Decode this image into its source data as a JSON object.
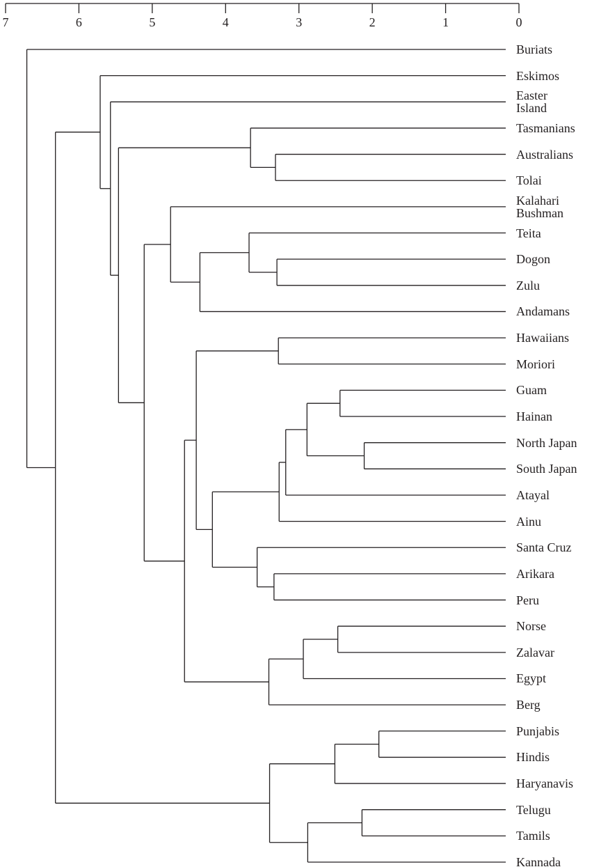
{
  "chart_data": {
    "type": "dendrogram",
    "xlim": [
      7,
      0
    ],
    "xticks": [
      7,
      6,
      5,
      4,
      3,
      2,
      1,
      0
    ],
    "color": "#231f20",
    "tree": {
      "height": 6.71,
      "children": [
        {
          "label": "Buriats"
        },
        {
          "height": 6.32,
          "children": [
            {
              "height": 5.71,
              "children": [
                {
                  "label": "Eskimos"
                },
                {
                  "height": 5.57,
                  "children": [
                    {
                      "label": "Easter\nIsland"
                    },
                    {
                      "height": 5.46,
                      "children": [
                        {
                          "height": 3.66,
                          "children": [
                            {
                              "label": "Tasmanians"
                            },
                            {
                              "height": 3.32,
                              "children": [
                                {
                                  "label": "Australians"
                                },
                                {
                                  "label": "Tolai"
                                }
                              ]
                            }
                          ]
                        },
                        {
                          "height": 5.11,
                          "children": [
                            {
                              "height": 4.75,
                              "children": [
                                {
                                  "label": "Kalahari\nBushman"
                                },
                                {
                                  "height": 4.35,
                                  "children": [
                                    {
                                      "height": 3.68,
                                      "children": [
                                        {
                                          "label": "Teita"
                                        },
                                        {
                                          "height": 3.3,
                                          "children": [
                                            {
                                              "label": "Dogon"
                                            },
                                            {
                                              "label": "Zulu"
                                            }
                                          ]
                                        }
                                      ]
                                    },
                                    {
                                      "label": "Andamans"
                                    }
                                  ]
                                }
                              ]
                            },
                            {
                              "height": 4.56,
                              "children": [
                                {
                                  "height": 4.4,
                                  "children": [
                                    {
                                      "height": 3.28,
                                      "children": [
                                        {
                                          "label": "Hawaiians"
                                        },
                                        {
                                          "label": "Moriori"
                                        }
                                      ]
                                    },
                                    {
                                      "height": 4.18,
                                      "children": [
                                        {
                                          "height": 3.27,
                                          "children": [
                                            {
                                              "height": 3.18,
                                              "children": [
                                                {
                                                  "height": 2.89,
                                                  "children": [
                                                    {
                                                      "height": 2.44,
                                                      "children": [
                                                        {
                                                          "label": "Guam"
                                                        },
                                                        {
                                                          "label": "Hainan"
                                                        }
                                                      ]
                                                    },
                                                    {
                                                      "height": 2.11,
                                                      "children": [
                                                        {
                                                          "label": "North Japan"
                                                        },
                                                        {
                                                          "label": "South Japan"
                                                        }
                                                      ]
                                                    }
                                                  ]
                                                },
                                                {
                                                  "label": "Atayal"
                                                }
                                              ]
                                            },
                                            {
                                              "label": "Ainu"
                                            }
                                          ]
                                        },
                                        {
                                          "height": 3.57,
                                          "children": [
                                            {
                                              "label": "Santa Cruz"
                                            },
                                            {
                                              "height": 3.34,
                                              "children": [
                                                {
                                                  "label": "Arikara"
                                                },
                                                {
                                                  "label": "Peru"
                                                }
                                              ]
                                            }
                                          ]
                                        }
                                      ]
                                    }
                                  ]
                                },
                                {
                                  "height": 3.41,
                                  "children": [
                                    {
                                      "height": 2.94,
                                      "children": [
                                        {
                                          "height": 2.47,
                                          "children": [
                                            {
                                              "label": "Norse"
                                            },
                                            {
                                              "label": "Zalavar"
                                            }
                                          ]
                                        },
                                        {
                                          "label": "Egypt"
                                        }
                                      ]
                                    },
                                    {
                                      "label": "Berg"
                                    }
                                  ]
                                }
                              ]
                            }
                          ]
                        }
                      ]
                    }
                  ]
                }
              ]
            },
            {
              "height": 3.4,
              "children": [
                {
                  "height": 2.51,
                  "children": [
                    {
                      "height": 1.91,
                      "children": [
                        {
                          "label": "Punjabis"
                        },
                        {
                          "label": "Hindis"
                        }
                      ]
                    },
                    {
                      "label": "Haryanavis"
                    }
                  ]
                },
                {
                  "height": 2.88,
                  "children": [
                    {
                      "height": 2.14,
                      "children": [
                        {
                          "label": "Telugu"
                        },
                        {
                          "label": "Tamils"
                        }
                      ]
                    },
                    {
                      "label": "Kannada"
                    }
                  ]
                }
              ]
            }
          ]
        }
      ]
    }
  }
}
